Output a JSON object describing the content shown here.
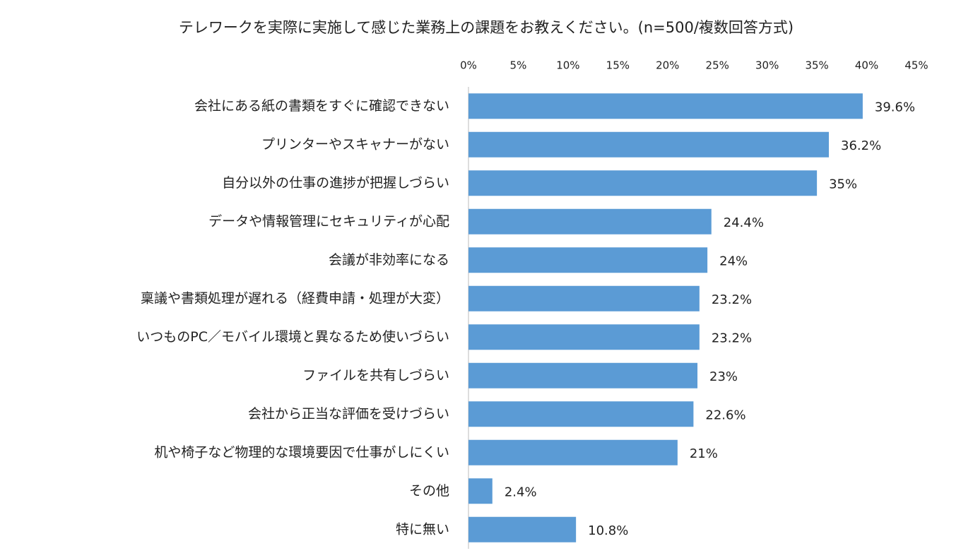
{
  "chart_data": {
    "type": "barh",
    "title": "テレワークを実際に実施して感じた業務上の課題をお教えください。(n=500/複数回答方式)",
    "categories": [
      "会社にある紙の書類をすぐに確認できない",
      "プリンターやスキャナーがない",
      "自分以外の仕事の進捗が把握しづらい",
      "データや情報管理にセキュリティが心配",
      "会議が非効率になる",
      "稟議や書類処理が遅れる（経費申請・処理が大変）",
      "いつものPC／モバイル環境と異なるため使いづらい",
      "ファイルを共有しづらい",
      "会社から正当な評価を受けづらい",
      "机や椅子など物理的な環境要因で仕事がしにくい",
      "その他",
      "特に無い"
    ],
    "values": [
      39.6,
      36.2,
      35,
      24.4,
      24,
      23.2,
      23.2,
      23,
      22.6,
      21,
      2.4,
      10.8
    ],
    "value_labels": [
      "39.6%",
      "36.2%",
      "35%",
      "24.4%",
      "24%",
      "23.2%",
      "23.2%",
      "23%",
      "22.6%",
      "21%",
      "2.4%",
      "10.8%"
    ],
    "color": "#5b9bd5",
    "xlim": [
      0,
      45
    ],
    "xticks": [
      {
        "value": 0,
        "label": "0%"
      },
      {
        "value": 5,
        "label": "5%"
      },
      {
        "value": 10,
        "label": "10%"
      },
      {
        "value": 15,
        "label": "15%"
      },
      {
        "value": 20,
        "label": "20%"
      },
      {
        "value": 25,
        "label": "25%"
      },
      {
        "value": 30,
        "label": "30%"
      },
      {
        "value": 35,
        "label": "35%"
      },
      {
        "value": 40,
        "label": "40%"
      },
      {
        "value": 45,
        "label": "45%"
      }
    ]
  }
}
